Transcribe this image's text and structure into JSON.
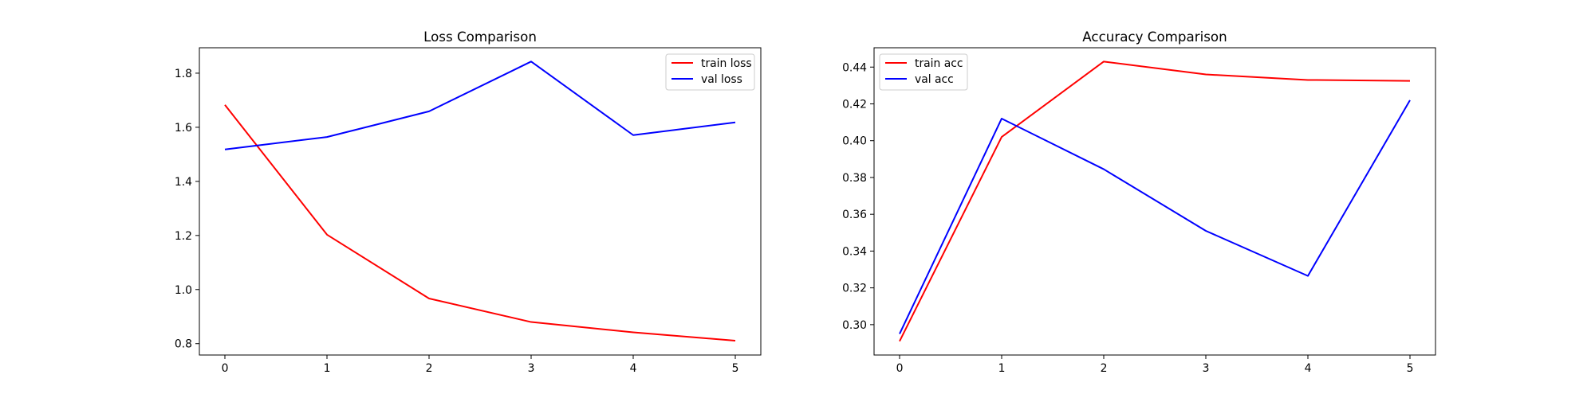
{
  "chart_data": [
    {
      "type": "line",
      "title": "Loss Comparison",
      "xlabel": "",
      "ylabel": "",
      "x": [
        0,
        1,
        2,
        3,
        4,
        5
      ],
      "xticks": [
        "0",
        "1",
        "2",
        "3",
        "4",
        "5"
      ],
      "xlim": [
        -0.25,
        5.25
      ],
      "ylim": [
        0.758,
        1.894
      ],
      "yticks": [
        "0.8",
        "1.0",
        "1.2",
        "1.4",
        "1.6",
        "1.8"
      ],
      "yticks_values": [
        0.8,
        1.0,
        1.2,
        1.4,
        1.6,
        1.8
      ],
      "grid": false,
      "legend_position": "upper right",
      "series": [
        {
          "name": "train loss",
          "color": "#ff0000",
          "values": [
            1.683,
            1.203,
            0.967,
            0.88,
            0.842,
            0.811
          ]
        },
        {
          "name": "val loss",
          "color": "#0000ff",
          "values": [
            1.518,
            1.564,
            1.659,
            1.843,
            1.571,
            1.618
          ]
        }
      ]
    },
    {
      "type": "line",
      "title": "Accuracy Comparison",
      "xlabel": "",
      "ylabel": "",
      "x": [
        0,
        1,
        2,
        3,
        4,
        5
      ],
      "xticks": [
        "0",
        "1",
        "2",
        "3",
        "4",
        "5"
      ],
      "xlim": [
        -0.25,
        5.25
      ],
      "ylim": [
        0.2835,
        0.4505
      ],
      "yticks": [
        "0.30",
        "0.32",
        "0.34",
        "0.36",
        "0.38",
        "0.40",
        "0.42",
        "0.44"
      ],
      "yticks_values": [
        0.3,
        0.32,
        0.34,
        0.36,
        0.38,
        0.4,
        0.42,
        0.44
      ],
      "grid": false,
      "legend_position": "upper left",
      "series": [
        {
          "name": "train acc",
          "color": "#ff0000",
          "values": [
            0.291,
            0.402,
            0.443,
            0.436,
            0.433,
            0.4325
          ]
        },
        {
          "name": "val acc",
          "color": "#0000ff",
          "values": [
            0.295,
            0.412,
            0.3845,
            0.351,
            0.3265,
            0.422
          ]
        }
      ]
    }
  ]
}
